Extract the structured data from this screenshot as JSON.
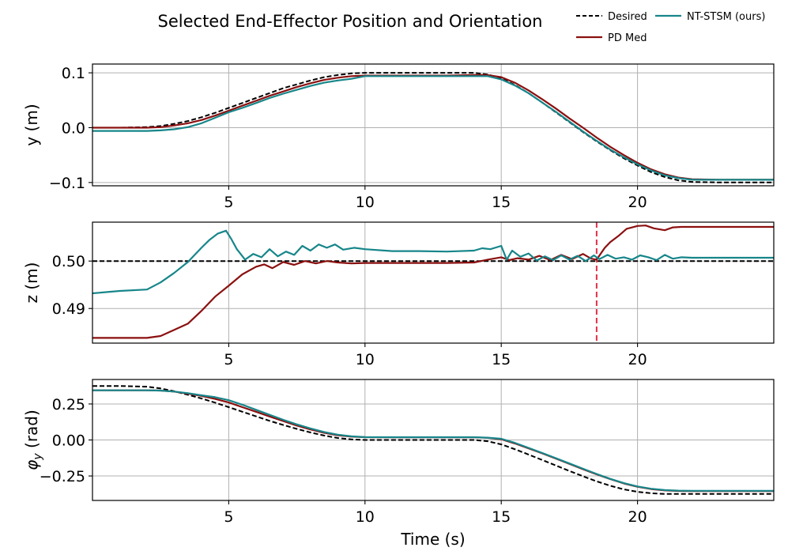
{
  "chart_data": {
    "type": "line",
    "title": "Selected End-Effector Position and Orientation",
    "xlabel": "Time (s)",
    "xlim": [
      0,
      25
    ],
    "xticks": [
      5,
      10,
      15,
      20
    ],
    "legend": {
      "placement": "top-right",
      "entries": [
        "Desired",
        "PD Med",
        "NT-STSM (ours)"
      ]
    },
    "colors": {
      "desired": "#000000",
      "pd_med": "#8b1010",
      "ntstsm": "#17868a",
      "vline": "#e0304a"
    },
    "subplots": [
      {
        "id": "y",
        "ylabel": "y (m)",
        "ylim": [
          -0.106,
          0.116
        ],
        "yticks": [
          0.1,
          0.0,
          -0.1
        ],
        "ytick_labels": [
          "0.1",
          "0.0",
          "−0.1"
        ],
        "series": [
          {
            "name": "Desired",
            "x": [
              0,
              1,
              2,
              2.5,
              3,
              3.5,
              4,
              4.5,
              5,
              5.5,
              6,
              6.5,
              7,
              7.5,
              8,
              8.5,
              9,
              9.5,
              10,
              11,
              12,
              13,
              14,
              14.5,
              15,
              15.5,
              16,
              16.5,
              17,
              17.5,
              18,
              18.5,
              19,
              19.5,
              20,
              20.5,
              21,
              21.5,
              22,
              23,
              24,
              25
            ],
            "y": [
              0,
              0,
              0.001,
              0.003,
              0.007,
              0.012,
              0.019,
              0.027,
              0.036,
              0.045,
              0.054,
              0.063,
              0.072,
              0.079,
              0.086,
              0.092,
              0.096,
              0.099,
              0.1,
              0.1,
              0.1,
              0.1,
              0.1,
              0.097,
              0.09,
              0.078,
              0.063,
              0.046,
              0.028,
              0.01,
              -0.008,
              -0.025,
              -0.041,
              -0.056,
              -0.069,
              -0.081,
              -0.09,
              -0.096,
              -0.099,
              -0.1,
              -0.1,
              -0.1
            ]
          },
          {
            "name": "PD Med",
            "x": [
              0,
              2,
              2.5,
              3,
              3.5,
              4,
              4.5,
              5,
              5.5,
              6,
              6.5,
              7,
              7.5,
              8,
              8.5,
              9,
              9.5,
              10,
              11,
              12,
              13,
              14,
              14.5,
              15,
              15.5,
              16,
              16.5,
              17,
              17.5,
              18,
              18.5,
              19,
              19.5,
              20,
              20.5,
              21,
              21.5,
              22,
              23,
              24,
              25
            ],
            "y": [
              0,
              0,
              0.001,
              0.004,
              0.008,
              0.014,
              0.022,
              0.031,
              0.04,
              0.049,
              0.058,
              0.066,
              0.074,
              0.081,
              0.087,
              0.091,
              0.094,
              0.095,
              0.095,
              0.095,
              0.095,
              0.096,
              0.096,
              0.092,
              0.082,
              0.068,
              0.052,
              0.035,
              0.017,
              0,
              -0.018,
              -0.035,
              -0.05,
              -0.064,
              -0.076,
              -0.085,
              -0.091,
              -0.094,
              -0.095,
              -0.095,
              -0.095
            ]
          },
          {
            "name": "NT-STSM (ours)",
            "x": [
              0,
              1,
              2,
              2.5,
              3,
              3.5,
              4,
              4.5,
              5,
              5.5,
              6,
              6.5,
              7,
              7.5,
              8,
              8.5,
              9,
              9.5,
              10,
              11,
              12,
              13,
              14,
              14.5,
              15,
              15.5,
              16,
              16.5,
              17,
              17.5,
              18,
              18.5,
              19,
              19.5,
              20,
              20.5,
              21,
              21.5,
              22,
              23,
              24,
              25
            ],
            "y": [
              -0.006,
              -0.006,
              -0.006,
              -0.005,
              -0.003,
              0.001,
              0.008,
              0.018,
              0.028,
              0.036,
              0.045,
              0.054,
              0.062,
              0.069,
              0.076,
              0.082,
              0.086,
              0.089,
              0.094,
              0.094,
              0.094,
              0.094,
              0.094,
              0.094,
              0.088,
              0.077,
              0.063,
              0.046,
              0.029,
              0.011,
              -0.007,
              -0.024,
              -0.04,
              -0.054,
              -0.067,
              -0.078,
              -0.087,
              -0.092,
              -0.095,
              -0.095,
              -0.095,
              -0.095
            ]
          }
        ]
      },
      {
        "id": "z",
        "ylabel": "z (m)",
        "ylim": [
          0.4827,
          0.5082
        ],
        "yticks": [
          0.5,
          0.49
        ],
        "ytick_labels": [
          "0.50",
          "0.49"
        ],
        "vline_x": 18.5,
        "series": [
          {
            "name": "Desired",
            "x": [
              0,
              25
            ],
            "y": [
              0.5,
              0.5
            ]
          },
          {
            "name": "PD Med",
            "x": [
              0,
              1,
              2,
              2.5,
              3,
              3.5,
              4,
              4.5,
              5,
              5.5,
              6,
              6.3,
              6.6,
              7,
              7.4,
              7.8,
              8.2,
              8.6,
              9,
              9.5,
              10,
              11,
              12,
              13,
              14,
              14.5,
              15,
              15.3,
              15.6,
              16,
              16.4,
              16.8,
              17.2,
              17.6,
              18,
              18.3,
              18.5,
              18.8,
              19,
              19.3,
              19.6,
              20,
              20.3,
              20.6,
              21,
              21.3,
              21.6,
              22,
              23,
              24,
              25
            ],
            "y": [
              0.4838,
              0.4838,
              0.4838,
              0.4842,
              0.4855,
              0.4868,
              0.4895,
              0.4925,
              0.4948,
              0.4972,
              0.4988,
              0.4993,
              0.4985,
              0.4998,
              0.4992,
              0.5,
              0.4995,
              0.5,
              0.4997,
              0.4995,
              0.4996,
              0.4996,
              0.4996,
              0.4996,
              0.4997,
              0.5003,
              0.5008,
              0.5002,
              0.5006,
              0.5003,
              0.5011,
              0.5002,
              0.5013,
              0.5004,
              0.5015,
              0.5005,
              0.5003,
              0.5028,
              0.504,
              0.5053,
              0.5068,
              0.5074,
              0.5075,
              0.5069,
              0.5065,
              0.5071,
              0.5072,
              0.5072,
              0.5072,
              0.5072,
              0.5072
            ]
          },
          {
            "name": "NT-STSM (ours)",
            "x": [
              0,
              1,
              2,
              2.5,
              3,
              3.5,
              4,
              4.3,
              4.6,
              4.9,
              5.1,
              5.3,
              5.6,
              5.9,
              6.2,
              6.5,
              6.8,
              7.1,
              7.4,
              7.7,
              8,
              8.3,
              8.6,
              8.9,
              9.2,
              9.6,
              10,
              11,
              12,
              13,
              14,
              14.3,
              14.6,
              15,
              15.2,
              15.4,
              15.7,
              16,
              16.3,
              16.6,
              16.9,
              17.2,
              17.5,
              17.8,
              18.1,
              18.4,
              18.6,
              18.9,
              19.2,
              19.5,
              19.8,
              20.1,
              20.4,
              20.7,
              21,
              21.3,
              21.6,
              22,
              23,
              24,
              25
            ],
            "y": [
              0.4932,
              0.4937,
              0.494,
              0.4955,
              0.4975,
              0.4998,
              0.5028,
              0.5045,
              0.5058,
              0.5064,
              0.5046,
              0.5025,
              0.5003,
              0.5015,
              0.5008,
              0.5025,
              0.501,
              0.502,
              0.5013,
              0.5032,
              0.5022,
              0.5035,
              0.5028,
              0.5035,
              0.5024,
              0.5028,
              0.5025,
              0.5021,
              0.5021,
              0.502,
              0.5022,
              0.5027,
              0.5025,
              0.5032,
              0.5003,
              0.5022,
              0.5009,
              0.5016,
              0.5001,
              0.501,
              0.5002,
              0.5012,
              0.5003,
              0.5011,
              0.5,
              0.5012,
              0.5004,
              0.5013,
              0.5005,
              0.5008,
              0.5003,
              0.5012,
              0.5008,
              0.5002,
              0.5013,
              0.5005,
              0.5008,
              0.5007,
              0.5007,
              0.5007,
              0.5007
            ]
          }
        ]
      },
      {
        "id": "phi",
        "ylabel": "φ_y (rad)",
        "ylabel_main": "φ",
        "ylabel_sub": "y",
        "ylabel_unit": " (rad)",
        "ylim": [
          -0.42,
          0.42
        ],
        "yticks": [
          0.25,
          0.0,
          -0.25
        ],
        "ytick_labels": [
          "0.25",
          "0.00",
          "−0.25"
        ],
        "series": [
          {
            "name": "Desired",
            "x": [
              0,
              1,
              2,
              2.5,
              3,
              3.5,
              4,
              4.5,
              5,
              5.5,
              6,
              6.5,
              7,
              7.5,
              8,
              8.5,
              9,
              9.5,
              10,
              11,
              12,
              13,
              14,
              14.5,
              15,
              15.5,
              16,
              16.5,
              17,
              17.5,
              18,
              18.5,
              19,
              19.5,
              20,
              20.5,
              21,
              21.5,
              22,
              23,
              24,
              25
            ],
            "y": [
              0.375,
              0.375,
              0.37,
              0.358,
              0.338,
              0.314,
              0.288,
              0.259,
              0.228,
              0.196,
              0.164,
              0.133,
              0.104,
              0.077,
              0.052,
              0.031,
              0.014,
              0.004,
              0,
              0,
              0,
              0,
              0,
              -0.009,
              -0.031,
              -0.064,
              -0.101,
              -0.139,
              -0.177,
              -0.215,
              -0.252,
              -0.287,
              -0.318,
              -0.343,
              -0.36,
              -0.37,
              -0.375,
              -0.375,
              -0.375,
              -0.375,
              -0.375,
              -0.375
            ]
          },
          {
            "name": "PD Med",
            "x": [
              0,
              1,
              2,
              2.5,
              3,
              3.5,
              4,
              4.5,
              5,
              5.5,
              6,
              6.5,
              7,
              7.5,
              8,
              8.5,
              9,
              9.5,
              10,
              11,
              12,
              13,
              14,
              14.5,
              15,
              15.5,
              16,
              16.5,
              17,
              17.5,
              18,
              18.5,
              19,
              19.5,
              20,
              20.5,
              21,
              21.5,
              22,
              23,
              24,
              25
            ],
            "y": [
              0.345,
              0.345,
              0.345,
              0.343,
              0.336,
              0.322,
              0.306,
              0.285,
              0.26,
              0.228,
              0.196,
              0.163,
              0.131,
              0.1,
              0.073,
              0.05,
              0.033,
              0.023,
              0.019,
              0.018,
              0.018,
              0.018,
              0.018,
              0.015,
              0.005,
              -0.024,
              -0.058,
              -0.093,
              -0.129,
              -0.166,
              -0.203,
              -0.239,
              -0.272,
              -0.302,
              -0.325,
              -0.341,
              -0.35,
              -0.354,
              -0.355,
              -0.355,
              -0.355,
              -0.355
            ]
          },
          {
            "name": "NT-STSM (ours)",
            "x": [
              0,
              1,
              2,
              2.5,
              3,
              3.5,
              4,
              4.5,
              5,
              5.5,
              6,
              6.5,
              7,
              7.5,
              8,
              8.5,
              9,
              9.5,
              10,
              11,
              12,
              13,
              14,
              14.5,
              15,
              15.5,
              16,
              16.5,
              17,
              17.5,
              18,
              18.5,
              19,
              19.5,
              20,
              20.5,
              21,
              21.5,
              22,
              23,
              24,
              25
            ],
            "y": [
              0.345,
              0.345,
              0.345,
              0.343,
              0.336,
              0.325,
              0.31,
              0.297,
              0.276,
              0.245,
              0.21,
              0.175,
              0.14,
              0.108,
              0.08,
              0.055,
              0.037,
              0.025,
              0.02,
              0.019,
              0.019,
              0.019,
              0.019,
              0.016,
              0.008,
              -0.02,
              -0.055,
              -0.09,
              -0.126,
              -0.163,
              -0.2,
              -0.236,
              -0.27,
              -0.3,
              -0.323,
              -0.339,
              -0.348,
              -0.352,
              -0.353,
              -0.353,
              -0.353,
              -0.353
            ]
          }
        ]
      }
    ]
  }
}
